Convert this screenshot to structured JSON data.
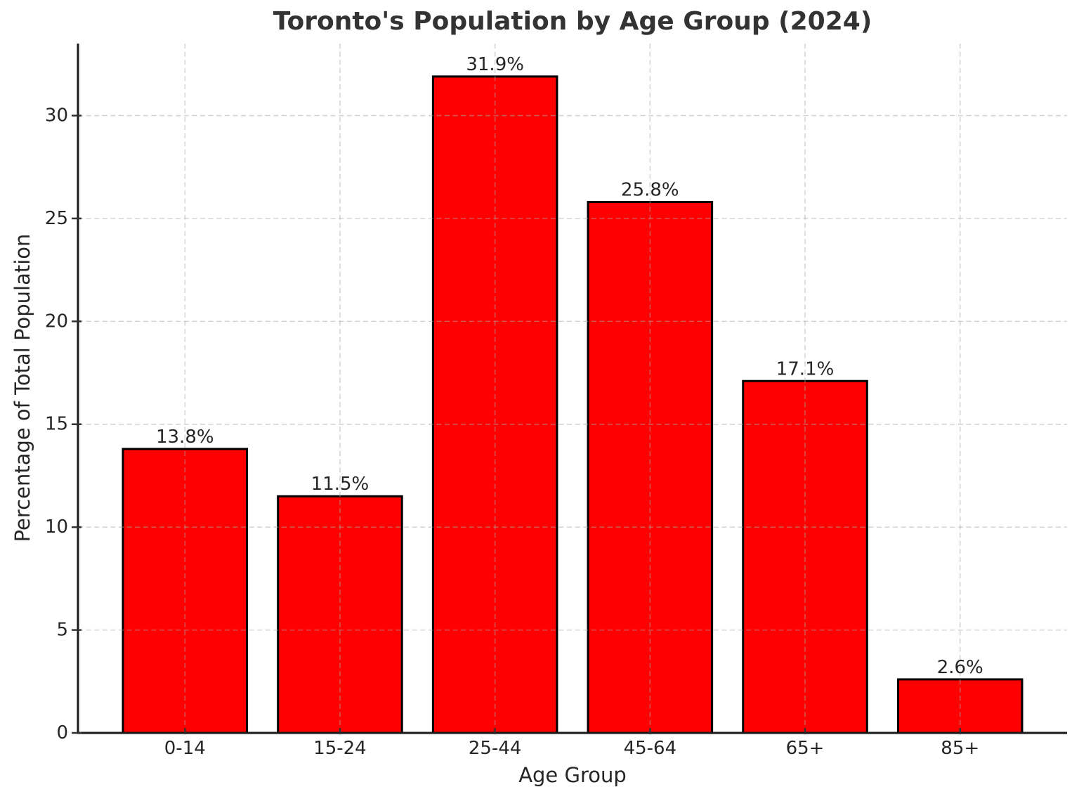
{
  "chart_data": {
    "type": "bar",
    "title": "Toronto's Population by Age Group (2024)",
    "xlabel": "Age Group",
    "ylabel": "Percentage of Total Population",
    "categories": [
      "0-14",
      "15-24",
      "25-44",
      "45-64",
      "65+",
      "85+"
    ],
    "values": [
      13.8,
      11.5,
      31.9,
      25.8,
      17.1,
      2.6
    ],
    "value_labels": [
      "13.8%",
      "11.5%",
      "31.9%",
      "25.8%",
      "17.1%",
      "2.6%"
    ],
    "ylim": [
      0,
      33.5
    ],
    "yticks": [
      0,
      5,
      10,
      15,
      20,
      25,
      30
    ],
    "ytick_labels": [
      "0",
      "5",
      "10",
      "15",
      "20",
      "25",
      "30"
    ],
    "legend": "none",
    "grid": "dashed, horizontal and vertical, drawn above bars",
    "colors": {
      "bar_fill": "#ff0000",
      "bar_edge": "#000000",
      "grid_line": "#aaaaaa",
      "axis_spine": "#1a1a1a",
      "tick_mark": "#333333",
      "tick_text": "#262626",
      "title_text": "#333333",
      "background": "#ffffff"
    }
  }
}
